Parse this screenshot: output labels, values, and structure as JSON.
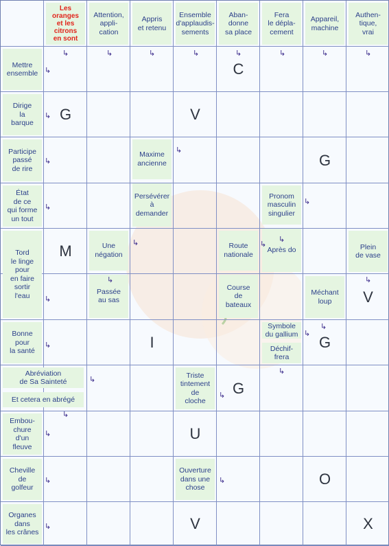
{
  "header_clues": [
    {
      "text": "Les\noranges\net les\ncitrons\nen sont",
      "red": true
    },
    {
      "text": "Attention,\nappli-\ncation"
    },
    {
      "text": "Appris\net retenu"
    },
    {
      "text": "Ensemble\nd'applaudis-\nsements"
    },
    {
      "text": "Aban-\ndonne\nsa place"
    },
    {
      "text": "Fera\nle dépla-\ncement"
    },
    {
      "text": "Appareil,\nmachine"
    },
    {
      "text": "Authen-\ntique,\nvrai"
    }
  ],
  "row_clues": [
    "Mettre\nensemble",
    "Dirige\nla\nbarque",
    "Participe\npassé\nde rire",
    "État\nde ce\nqui forme\nun tout",
    "Tord\nle linge\npour\nen faire\nsortir\nl'eau",
    "Bonne\npour\nla santé",
    "Abréviation\nde Sa Sainteté|Et cetera en abrégé",
    "Embou-\nchure\nd'un\nfleuve",
    "Cheville\nde\ngolfeur",
    "Organes\ndans\nles crânes"
  ],
  "inner_clues": [
    {
      "id": "maxime",
      "top": "Maxime\nancienne",
      "bottom": "Persévérer\nà\ndemander"
    },
    {
      "id": "pronom",
      "top": "Pronom\nmasculin\nsingulier",
      "bottom": "Après do"
    },
    {
      "id": "negation",
      "top": "Une\nnégation",
      "bottom": "Passée\nau sas"
    },
    {
      "id": "route",
      "top": "Route\nnationale",
      "bottom": "Course\nde\nbateaux"
    },
    {
      "id": "plein",
      "top": "Plein\nde vase"
    },
    {
      "id": "mechant",
      "top": "Méchant\nloup"
    },
    {
      "id": "gallium",
      "top": "Symbole\ndu gallium",
      "bottom": "Déchif-\nfrera"
    },
    {
      "id": "triste",
      "top": "Triste\ntintement\nde\ncloche"
    },
    {
      "id": "ouverture",
      "top": "Ouverture\ndans une\nchose"
    }
  ],
  "letters": [
    "C",
    "G",
    "V",
    "G",
    "M",
    "V",
    "G",
    "I",
    "G",
    "U",
    "O",
    "V",
    "X"
  ],
  "arrow_glyph": "↳"
}
